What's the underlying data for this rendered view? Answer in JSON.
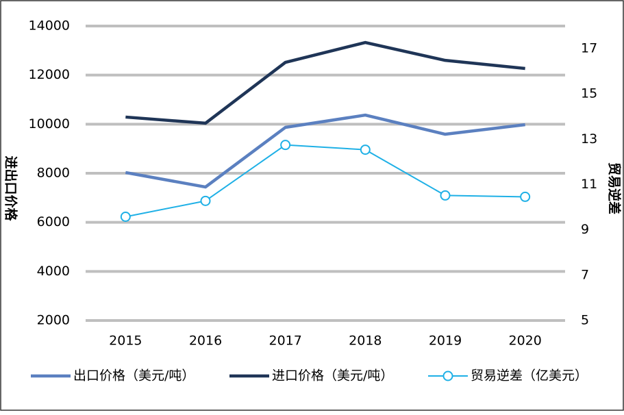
{
  "chart_data": {
    "type": "line",
    "categories": [
      "2015",
      "2016",
      "2017",
      "2018",
      "2019",
      "2020"
    ],
    "y_label": "进出口价格",
    "y2_label": "贸易逆差",
    "ylim": [
      2000,
      14000
    ],
    "yticks": [
      2000,
      4000,
      6000,
      8000,
      10000,
      12000,
      14000
    ],
    "y2lim": [
      5,
      18
    ],
    "y2ticks": [
      5,
      7,
      9,
      11,
      13,
      15,
      17
    ],
    "grid": true,
    "legend": "bottom",
    "series": [
      {
        "name": "出口价格（美元/吨）",
        "color": "#5b80c0",
        "values": [
          8030,
          7440,
          9870,
          10370,
          9590,
          9980
        ]
      },
      {
        "name": "进口价格（美元/吨）",
        "color": "#1f3557",
        "values": [
          10290,
          10040,
          12520,
          13330,
          12600,
          12270
        ]
      },
      {
        "name": "贸易逆差（亿美元）",
        "color": "#1eb0e6",
        "axis": "y2",
        "marker": true,
        "values": [
          9.58,
          10.28,
          12.75,
          12.54,
          10.52,
          10.46
        ]
      }
    ]
  }
}
